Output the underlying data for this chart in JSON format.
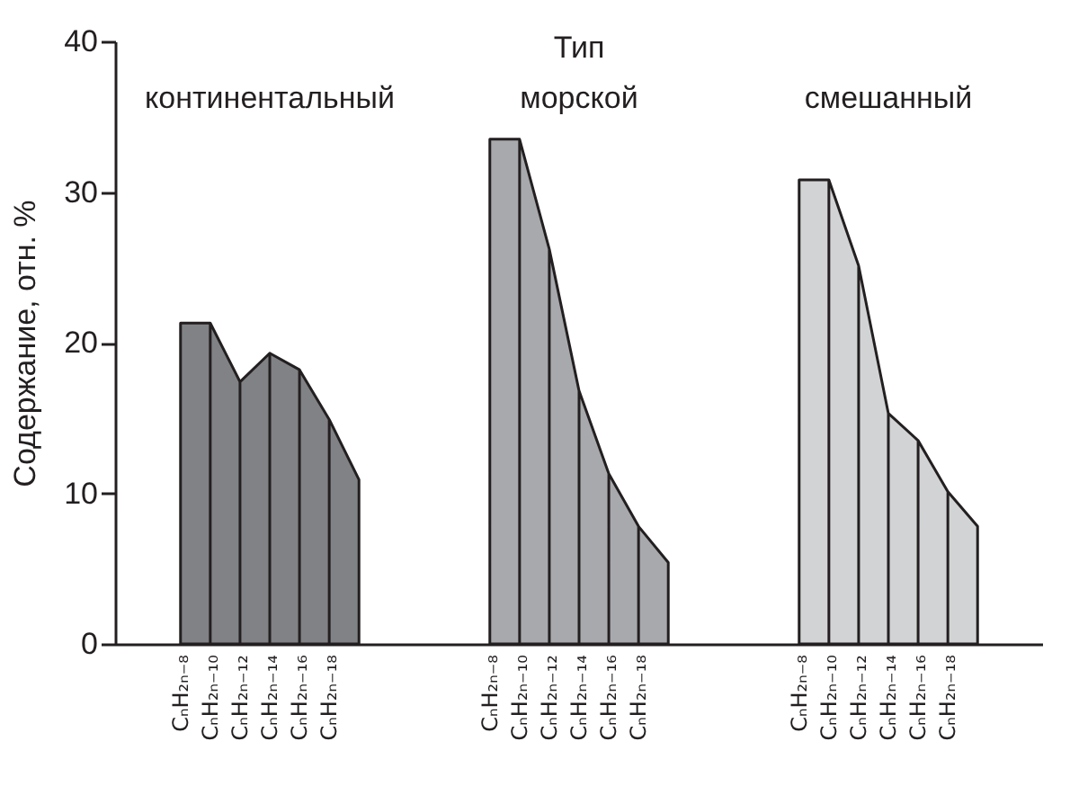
{
  "chart_data": [
    {
      "type": "area",
      "ylabel": "Содержание, отн. %",
      "categories": [
        "CₙH₂ₙ₋₈",
        "CₙH₂ₙ₋₁₀",
        "CₙH₂ₙ₋₁₂",
        "CₙH₂ₙ₋₁₄",
        "CₙH₂ₙ₋₁₆",
        "CₙH₂ₙ₋₁₈",
        null
      ],
      "series": [
        {
          "name": "континентальный",
          "color": "#808285",
          "values": [
            21.3,
            21.3,
            17.4,
            19.3,
            18.2,
            14.9,
            10.9
          ]
        }
      ],
      "ylim": [
        0,
        40
      ],
      "yticks": [
        0,
        10,
        20,
        30,
        40
      ],
      "grid": false
    },
    {
      "type": "area",
      "title": "Тип",
      "categories": [
        "CₙH₂ₙ₋₈",
        "CₙH₂ₙ₋₁₀",
        "CₙH₂ₙ₋₁₂",
        "CₙH₂ₙ₋₁₄",
        "CₙH₂ₙ₋₁₆",
        "CₙH₂ₙ₋₁₈",
        null
      ],
      "series": [
        {
          "name": "морской",
          "color": "#a7a9ac",
          "values": [
            33.5,
            33.5,
            26.2,
            16.8,
            11.3,
            7.8,
            5.4
          ]
        }
      ],
      "ylim": [
        0,
        40
      ],
      "tick_labels": "x",
      "grid": false
    },
    {
      "type": "area",
      "categories": [
        "CₙH₂ₙ₋₈",
        "CₙH₂ₙ₋₁₀",
        "CₙH₂ₙ₋₁₂",
        "CₙH₂ₙ₋₁₄",
        "CₙH₂ₙ₋₁₆",
        "CₙH₂ₙ₋₁₈",
        null
      ],
      "series": [
        {
          "name": "смешанный",
          "color": "#d1d3d4",
          "values": [
            30.8,
            30.8,
            25.1,
            15.3,
            13.5,
            10.1,
            7.8
          ]
        }
      ],
      "ylim": [
        0,
        40
      ],
      "tick_labels": "x",
      "grid": false
    }
  ]
}
